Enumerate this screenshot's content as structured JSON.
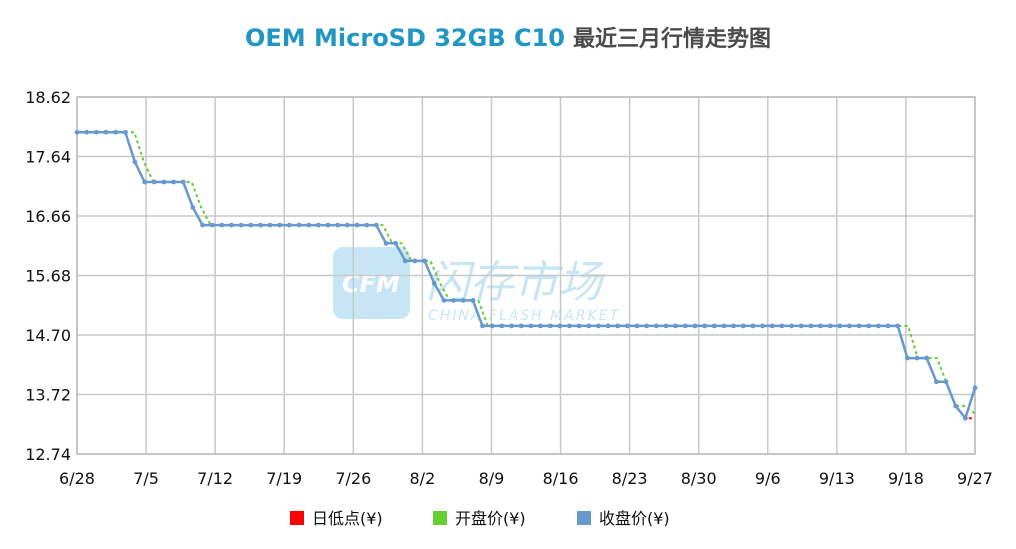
{
  "chart_data": {
    "type": "line",
    "title_product": "OEM MicroSD 32GB C10",
    "title_rest": "最近三月行情走势图",
    "xlabel": "",
    "ylabel": "",
    "ylim": [
      12.74,
      18.62
    ],
    "y_ticks": [
      "18.62",
      "17.64",
      "16.66",
      "15.68",
      "14.70",
      "13.72",
      "12.74"
    ],
    "x_ticks": [
      "6/28",
      "7/5",
      "7/12",
      "7/19",
      "7/26",
      "8/2",
      "8/9",
      "8/16",
      "8/23",
      "8/30",
      "9/6",
      "9/13",
      "9/18",
      "9/27"
    ],
    "grid": true,
    "legend_position": "bottom",
    "watermark": {
      "logo_text": "CFM",
      "cn_text": "闪存市场",
      "en_text": "CHINA FLASH MARKET"
    },
    "series": [
      {
        "name": "日低点(¥)",
        "color": "#ff0000",
        "values": [
          18.04,
          18.04,
          18.04,
          18.04,
          18.04,
          18.04,
          17.55,
          17.22,
          17.22,
          17.22,
          17.22,
          17.22,
          16.8,
          16.51,
          16.51,
          16.51,
          16.51,
          16.51,
          16.51,
          16.51,
          16.51,
          16.51,
          16.51,
          16.51,
          16.51,
          16.51,
          16.51,
          16.51,
          16.51,
          16.51,
          16.51,
          16.51,
          16.21,
          16.21,
          15.92,
          15.92,
          15.92,
          15.55,
          15.27,
          15.27,
          15.27,
          15.27,
          14.85,
          14.85,
          14.85,
          14.85,
          14.85,
          14.85,
          14.85,
          14.85,
          14.85,
          14.85,
          14.85,
          14.85,
          14.85,
          14.85,
          14.85,
          14.85,
          14.85,
          14.85,
          14.85,
          14.85,
          14.85,
          14.85,
          14.85,
          14.85,
          14.85,
          14.85,
          14.85,
          14.85,
          14.85,
          14.85,
          14.85,
          14.85,
          14.85,
          14.85,
          14.85,
          14.85,
          14.85,
          14.85,
          14.85,
          14.85,
          14.85,
          14.85,
          14.85,
          14.85,
          14.32,
          14.32,
          14.32,
          13.93,
          13.93,
          13.53,
          13.33,
          13.33
        ]
      },
      {
        "name": "开盘价(¥)",
        "color": "#66cc33",
        "values": [
          18.04,
          18.04,
          18.04,
          18.04,
          18.04,
          18.04,
          18.04,
          17.55,
          17.22,
          17.22,
          17.22,
          17.22,
          17.22,
          16.8,
          16.51,
          16.51,
          16.51,
          16.51,
          16.51,
          16.51,
          16.51,
          16.51,
          16.51,
          16.51,
          16.51,
          16.51,
          16.51,
          16.51,
          16.51,
          16.51,
          16.51,
          16.51,
          16.51,
          16.21,
          16.21,
          15.92,
          15.92,
          15.92,
          15.55,
          15.27,
          15.27,
          15.27,
          15.27,
          14.85,
          14.85,
          14.85,
          14.85,
          14.85,
          14.85,
          14.85,
          14.85,
          14.85,
          14.85,
          14.85,
          14.85,
          14.85,
          14.85,
          14.85,
          14.85,
          14.85,
          14.85,
          14.85,
          14.85,
          14.85,
          14.85,
          14.85,
          14.85,
          14.85,
          14.85,
          14.85,
          14.85,
          14.85,
          14.85,
          14.85,
          14.85,
          14.85,
          14.85,
          14.85,
          14.85,
          14.85,
          14.85,
          14.85,
          14.85,
          14.85,
          14.85,
          14.85,
          14.85,
          14.85,
          14.32,
          14.32,
          14.32,
          13.93,
          13.53,
          13.53,
          13.4
        ]
      },
      {
        "name": "收盘价(¥)",
        "color": "#6699cc",
        "values": [
          18.04,
          18.04,
          18.04,
          18.04,
          18.04,
          18.04,
          17.55,
          17.22,
          17.22,
          17.22,
          17.22,
          17.22,
          16.8,
          16.51,
          16.51,
          16.51,
          16.51,
          16.51,
          16.51,
          16.51,
          16.51,
          16.51,
          16.51,
          16.51,
          16.51,
          16.51,
          16.51,
          16.51,
          16.51,
          16.51,
          16.51,
          16.51,
          16.21,
          16.21,
          15.92,
          15.92,
          15.92,
          15.55,
          15.27,
          15.27,
          15.27,
          15.27,
          14.85,
          14.85,
          14.85,
          14.85,
          14.85,
          14.85,
          14.85,
          14.85,
          14.85,
          14.85,
          14.85,
          14.85,
          14.85,
          14.85,
          14.85,
          14.85,
          14.85,
          14.85,
          14.85,
          14.85,
          14.85,
          14.85,
          14.85,
          14.85,
          14.85,
          14.85,
          14.85,
          14.85,
          14.85,
          14.85,
          14.85,
          14.85,
          14.85,
          14.85,
          14.85,
          14.85,
          14.85,
          14.85,
          14.85,
          14.85,
          14.85,
          14.85,
          14.85,
          14.85,
          14.32,
          14.32,
          14.32,
          13.93,
          13.93,
          13.53,
          13.33,
          13.83
        ]
      }
    ]
  }
}
